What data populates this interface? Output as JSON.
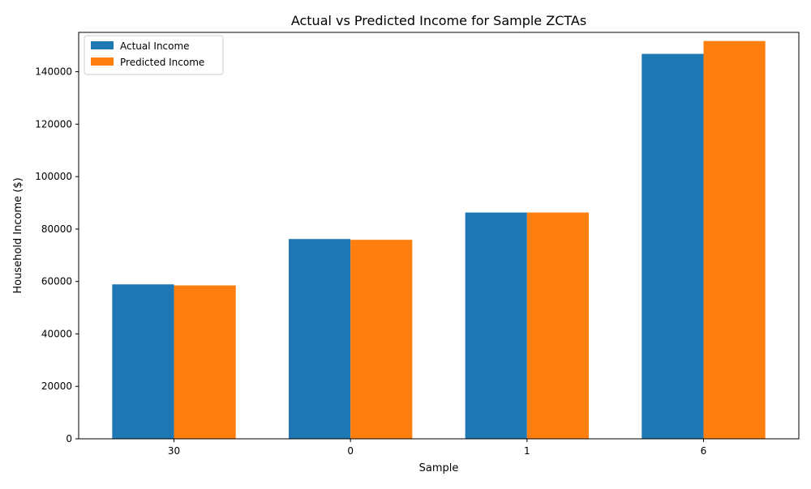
{
  "chart_data": {
    "type": "bar",
    "title": "Actual vs Predicted Income for Sample ZCTAs",
    "xlabel": "Sample",
    "ylabel": "Household Income ($)",
    "categories": [
      "30",
      "0",
      "1",
      "6"
    ],
    "series": [
      {
        "name": "Actual Income",
        "color": "#1f77b4",
        "values": [
          58900,
          76200,
          86300,
          146800
        ]
      },
      {
        "name": "Predicted Income",
        "color": "#ff7f0e",
        "values": [
          58500,
          75900,
          86300,
          151700
        ]
      }
    ],
    "ylim": [
      0,
      155000
    ],
    "yticks": [
      0,
      20000,
      40000,
      60000,
      80000,
      100000,
      120000,
      140000
    ],
    "ytick_labels": [
      "0",
      "20000",
      "40000",
      "60000",
      "80000",
      "100000",
      "120000",
      "140000"
    ],
    "grid": false,
    "legend": "top-left"
  }
}
